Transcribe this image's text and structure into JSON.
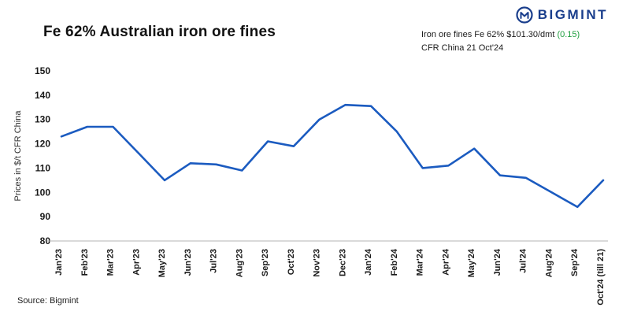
{
  "brand": {
    "name": "BIGMINT",
    "icon": "bigmint-m-circle",
    "color": "#1a3e8c"
  },
  "header": {
    "title": "Fe 62% Australian iron ore fines"
  },
  "annotation": {
    "price_text": "Iron ore fines Fe 62% $101.30/dmt ",
    "change": "(0.15)",
    "change_color": "#1e9e3e",
    "line2": "CFR China 21 Oct'24"
  },
  "source": "Source: Bigmint",
  "chart_data": {
    "type": "line",
    "title": "Fe 62% Australian iron ore fines",
    "xlabel": "",
    "ylabel": "Prices in $/t CFR China",
    "ylim": [
      80,
      150
    ],
    "yticks": [
      80,
      90,
      100,
      110,
      120,
      130,
      140,
      150
    ],
    "grid": false,
    "legend": "none",
    "line_color": "#1b5bc0",
    "axis_color": "#b5b5b5",
    "tick_label_color": "#1a1a1a",
    "categories": [
      "Jan'23",
      "Feb'23",
      "Mar'23",
      "Apr'23",
      "May'23",
      "Jun'23",
      "Jul'23",
      "Aug'23",
      "Sep'23",
      "Oct'23",
      "Nov'23",
      "Dec'23",
      "Jan'24",
      "Feb'24",
      "Mar'24",
      "Apr'24",
      "May'24",
      "Jun'24",
      "Jul'24",
      "Aug'24",
      "Sep'24",
      "Oct'24 (till 21)"
    ],
    "values": [
      123,
      127,
      127,
      116,
      105,
      112,
      111.5,
      109,
      121,
      119,
      130,
      136,
      135.5,
      125,
      110,
      111,
      118,
      107,
      106,
      100,
      94,
      105
    ]
  }
}
